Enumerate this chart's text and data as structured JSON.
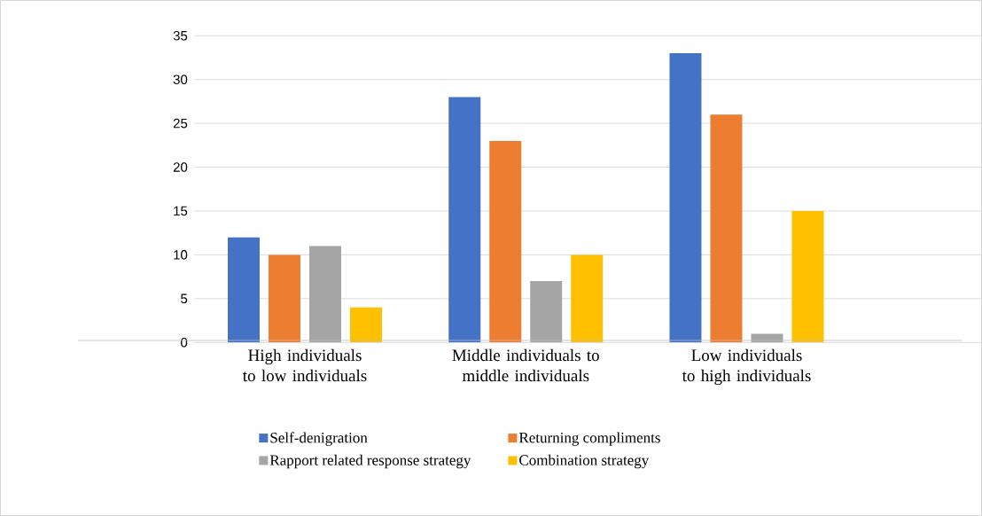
{
  "chart_data": {
    "type": "bar",
    "categories": [
      "High individuals to low individuals",
      "Middle individuals to middle individuals",
      "Low individuals to high individuals",
      null
    ],
    "series": [
      {
        "name": "Self-denigration",
        "color": "#4472c4",
        "values": [
          12,
          28,
          33,
          null
        ]
      },
      {
        "name": "Returning compliments",
        "color": "#ed7d31",
        "values": [
          10,
          23,
          26,
          null
        ]
      },
      {
        "name": "Rapport related response strategy",
        "color": "#a5a5a5",
        "values": [
          11,
          7,
          1,
          null
        ]
      },
      {
        "name": "Combination strategy",
        "color": "#ffc000",
        "values": [
          4,
          10,
          15,
          null
        ]
      }
    ],
    "ylim": [
      0,
      35
    ],
    "yticks": [
      0,
      5,
      10,
      15,
      20,
      25,
      30,
      35
    ],
    "grid": "y",
    "legend": "bottom"
  }
}
